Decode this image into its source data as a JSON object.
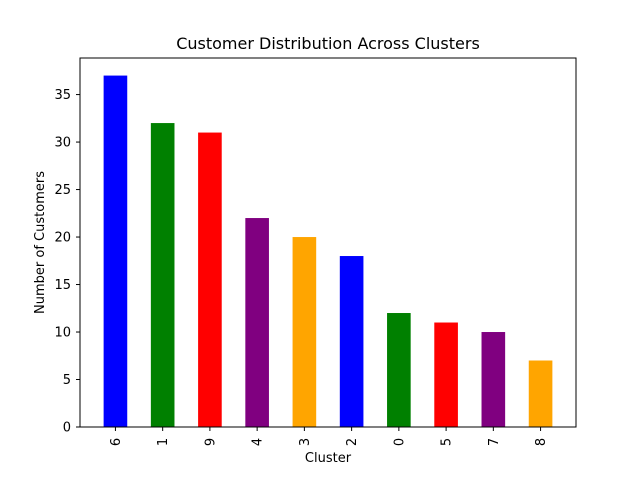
{
  "chart_data": {
    "type": "bar",
    "title": "Customer Distribution Across Clusters",
    "xlabel": "Cluster",
    "ylabel": "Number of Customers",
    "categories": [
      "6",
      "1",
      "9",
      "4",
      "3",
      "2",
      "0",
      "5",
      "7",
      "8"
    ],
    "values": [
      37,
      32,
      31,
      22,
      20,
      18,
      12,
      11,
      10,
      7
    ],
    "colors": [
      "#0000ff",
      "#008000",
      "#ff0000",
      "#800080",
      "#ffa500",
      "#0000ff",
      "#008000",
      "#ff0000",
      "#800080",
      "#ffa500"
    ],
    "yticks": [
      0,
      5,
      10,
      15,
      20,
      25,
      30,
      35
    ],
    "ylim": [
      0,
      38.85
    ],
    "grid": false,
    "legend": "none"
  }
}
